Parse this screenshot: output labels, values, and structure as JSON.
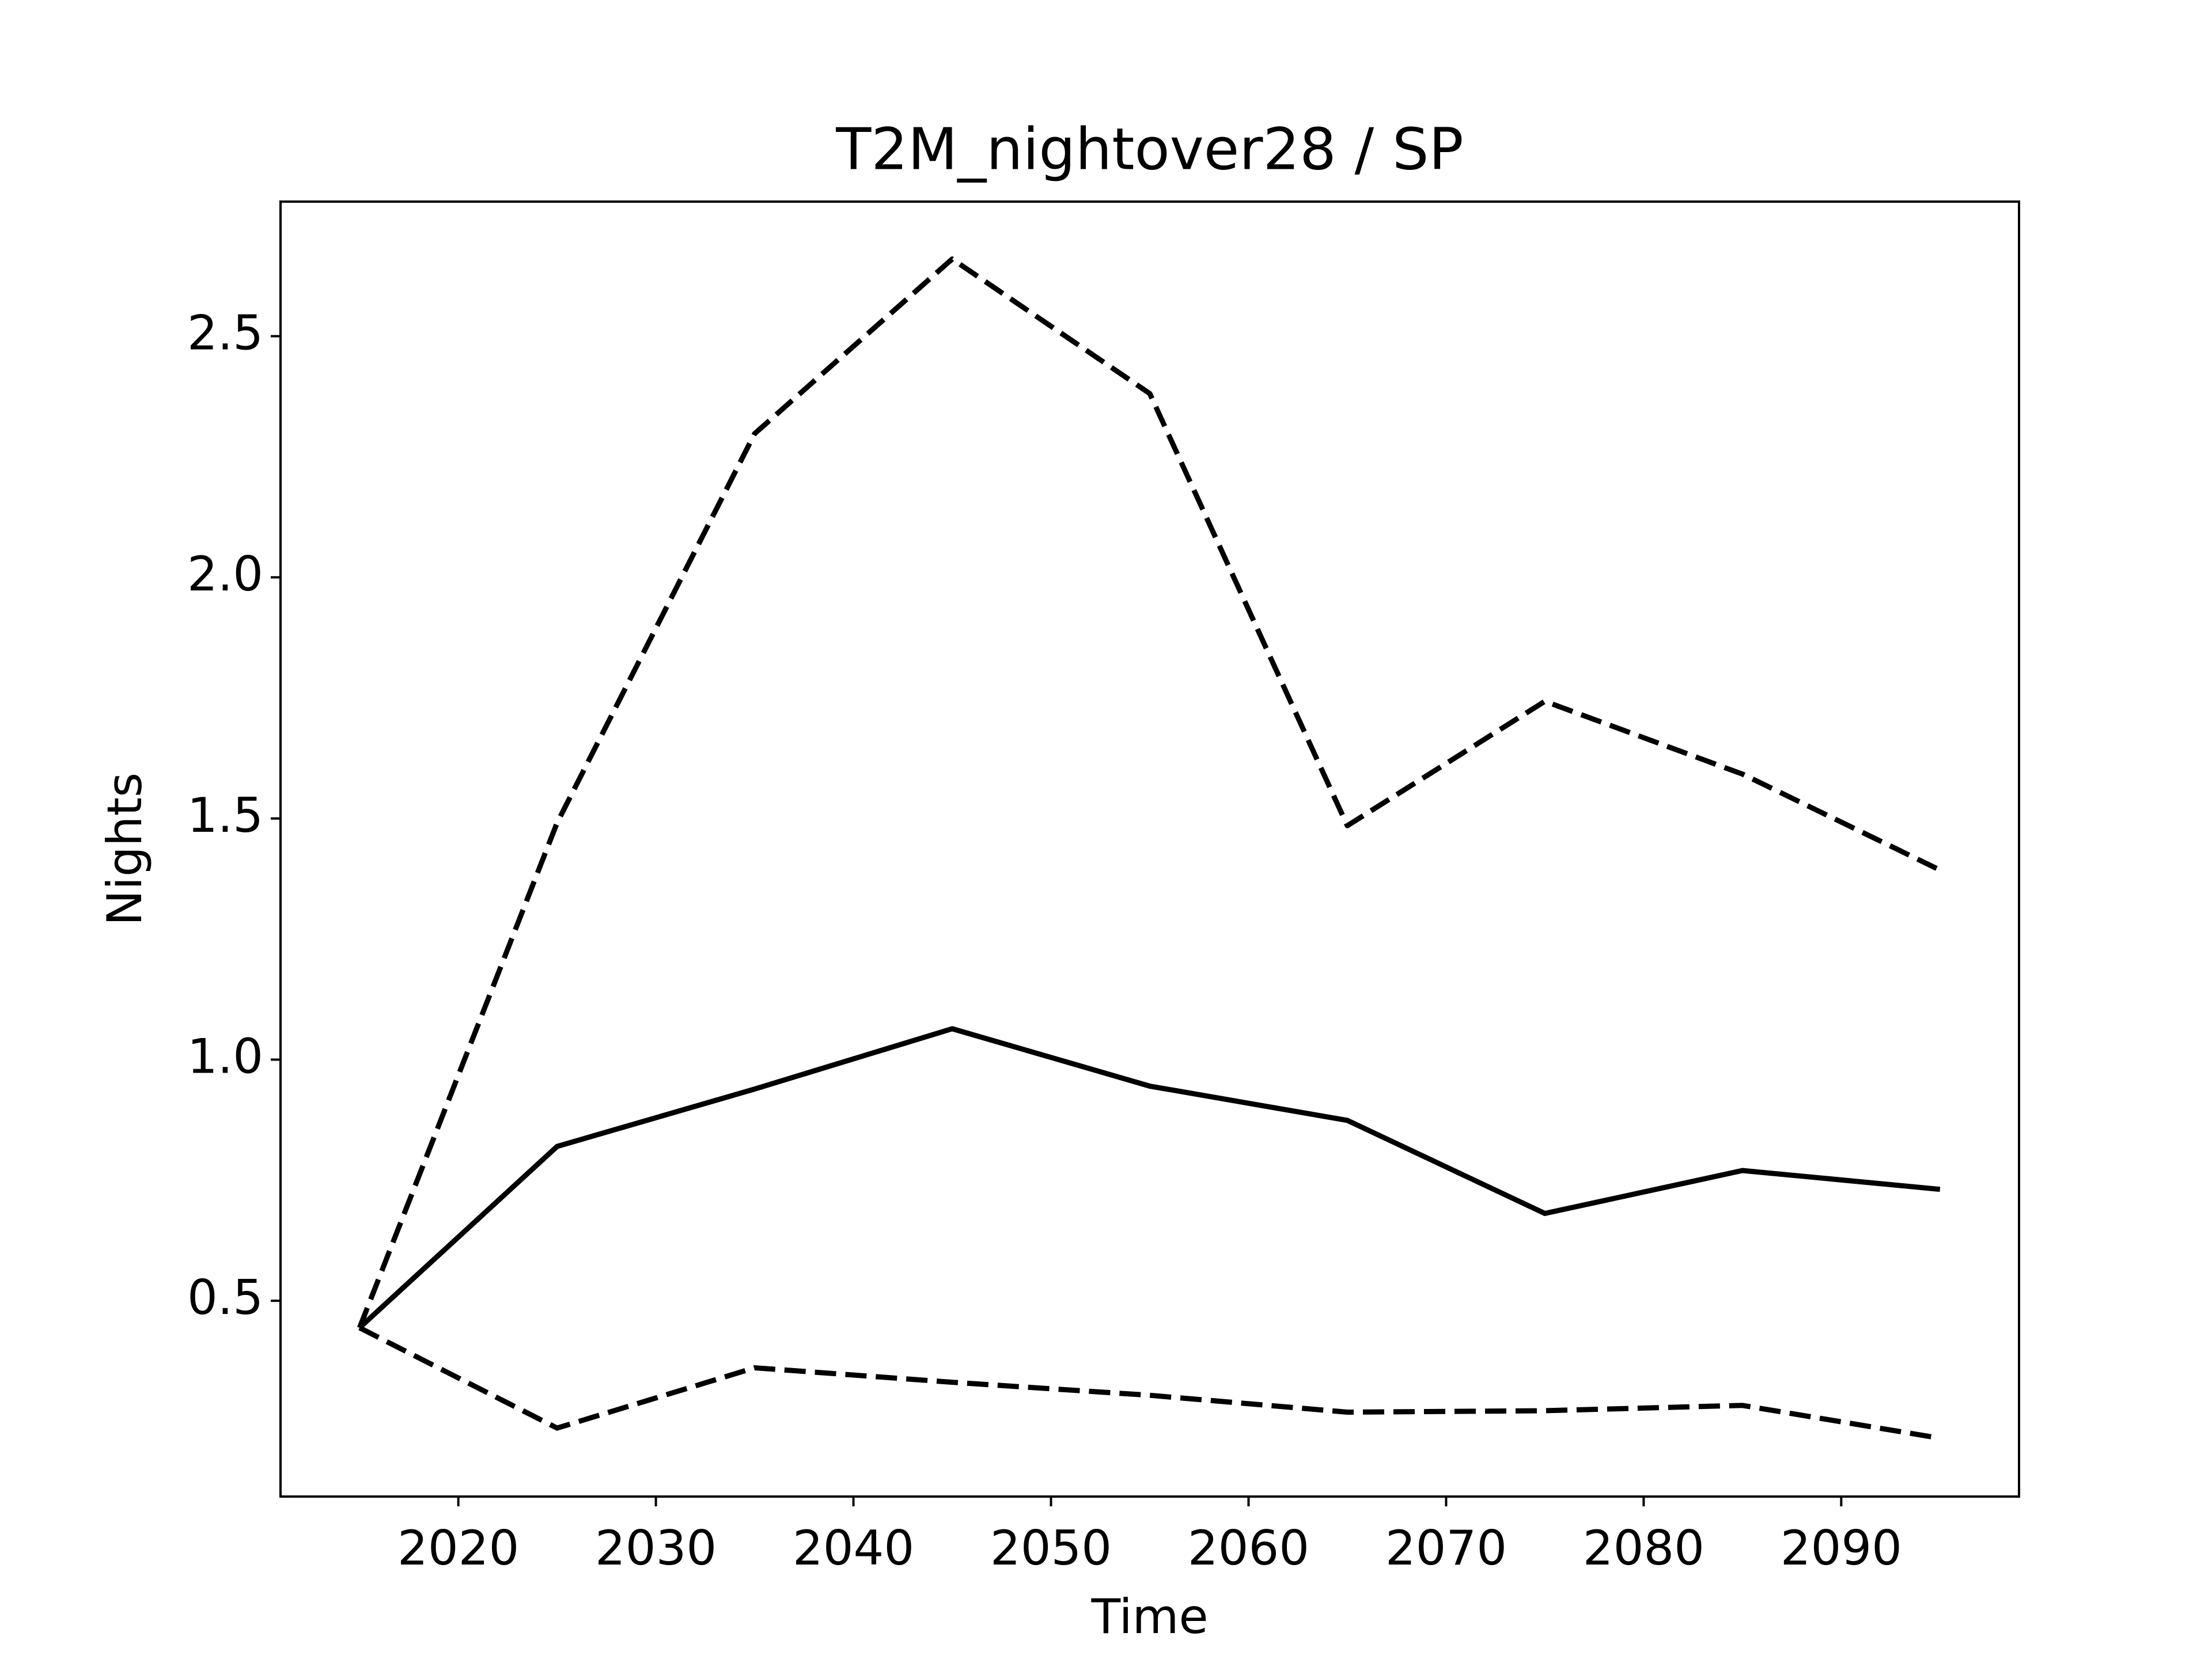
{
  "chart_data": {
    "type": "line",
    "title": "T2M_nightover28 / SP",
    "xlabel": "Time",
    "ylabel": "Nights",
    "x": [
      2015,
      2025,
      2035,
      2045,
      2055,
      2065,
      2075,
      2085,
      2095
    ],
    "series": [
      {
        "color": "#000000",
        "linestyle": "solid",
        "values": [
          0.444,
          0.82,
          0.939,
          1.064,
          0.945,
          0.874,
          0.681,
          0.77,
          0.731
        ]
      },
      {
        "color": "#000000",
        "linestyle": "dashed",
        "values": [
          0.444,
          1.491,
          2.298,
          2.66,
          2.381,
          1.485,
          1.743,
          1.592,
          1.393
        ]
      },
      {
        "color": "#000000",
        "linestyle": "dashed",
        "values": [
          0.444,
          0.236,
          0.361,
          0.331,
          0.304,
          0.269,
          0.272,
          0.283,
          0.215
        ]
      }
    ],
    "xlim": [
      2011,
      2099
    ],
    "xticks": [
      2020,
      2030,
      2040,
      2050,
      2060,
      2070,
      2080,
      2090
    ],
    "ylim": [
      0.094,
      2.779
    ],
    "yticks": [
      {
        "value": 0.5,
        "label": "0.5"
      },
      {
        "value": 1,
        "label": "1.0"
      },
      {
        "value": 1.5,
        "label": "1.5"
      },
      {
        "value": 2,
        "label": "2.0"
      },
      {
        "value": 2.5,
        "label": "2.5"
      }
    ],
    "grid": false
  }
}
